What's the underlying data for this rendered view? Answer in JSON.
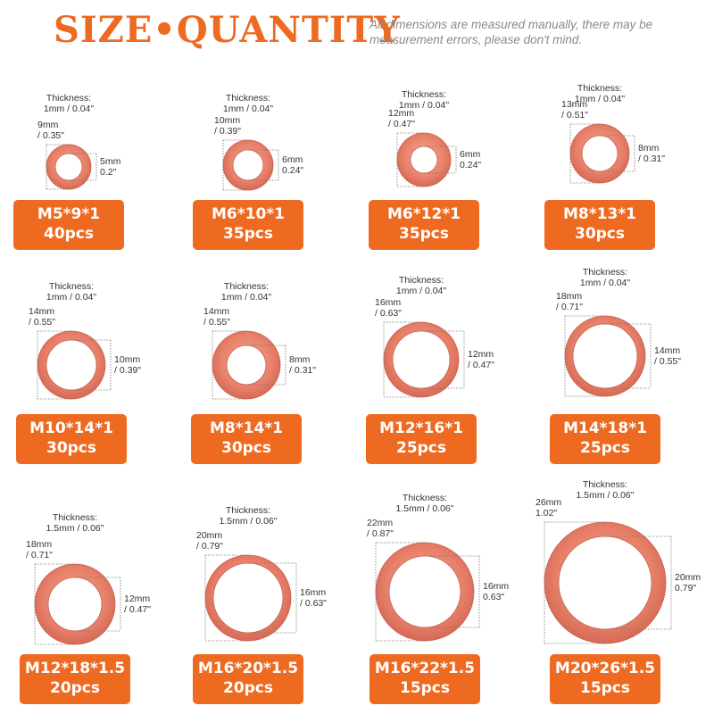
{
  "header": {
    "title": "SIZE•QUANTITY",
    "note": "All dimensions are measured manually, there may be measurement errors, please don't mind."
  },
  "colors": {
    "accent": "#ee6a21",
    "copper": "#e8806a"
  },
  "items": [
    {
      "thickness_label": "Thickness:",
      "thickness": "1mm / 0.04\"",
      "outer_mm": "9mm",
      "outer_in": "/ 0.35\"",
      "inner_mm": "5mm",
      "inner_in": "0.2\"",
      "code": "M5*9*1",
      "qty": "40pcs"
    },
    {
      "thickness_label": "Thickness:",
      "thickness": "1mm / 0.04\"",
      "outer_mm": "10mm",
      "outer_in": "/ 0.39\"",
      "inner_mm": "6mm",
      "inner_in": "0.24\"",
      "code": "M6*10*1",
      "qty": "35pcs"
    },
    {
      "thickness_label": "Thickness:",
      "thickness": "1mm / 0.04\"",
      "outer_mm": "12mm",
      "outer_in": "/ 0.47\"",
      "inner_mm": "6mm",
      "inner_in": "0.24\"",
      "code": "M6*12*1",
      "qty": "35pcs"
    },
    {
      "thickness_label": "Thickness:",
      "thickness": "1mm / 0.04\"",
      "outer_mm": "13mm",
      "outer_in": "/ 0.51\"",
      "inner_mm": "8mm",
      "inner_in": "/ 0.31\"",
      "code": "M8*13*1",
      "qty": "30pcs"
    },
    {
      "thickness_label": "Thickness:",
      "thickness": "1mm / 0.04\"",
      "outer_mm": "14mm",
      "outer_in": "/ 0.55\"",
      "inner_mm": "10mm",
      "inner_in": "/ 0.39\"",
      "code": "M10*14*1",
      "qty": "30pcs"
    },
    {
      "thickness_label": "Thickness:",
      "thickness": "1mm / 0.04\"",
      "outer_mm": "14mm",
      "outer_in": "/ 0.55\"",
      "inner_mm": "8mm",
      "inner_in": "/ 0.31\"",
      "code": "M8*14*1",
      "qty": "30pcs"
    },
    {
      "thickness_label": "Thickness:",
      "thickness": "1mm / 0.04\"",
      "outer_mm": "16mm",
      "outer_in": "/ 0.63\"",
      "inner_mm": "12mm",
      "inner_in": "/ 0.47\"",
      "code": "M12*16*1",
      "qty": "25pcs"
    },
    {
      "thickness_label": "Thickness:",
      "thickness": "1mm / 0.04\"",
      "outer_mm": "18mm",
      "outer_in": "/ 0.71\"",
      "inner_mm": "14mm",
      "inner_in": "/ 0.55\"",
      "code": "M14*18*1",
      "qty": "25pcs"
    },
    {
      "thickness_label": "Thickness:",
      "thickness": "1.5mm / 0.06\"",
      "outer_mm": "18mm",
      "outer_in": "/ 0.71\"",
      "inner_mm": "12mm",
      "inner_in": "/ 0.47\"",
      "code": "M12*18*1.5",
      "qty": "20pcs"
    },
    {
      "thickness_label": "Thickness:",
      "thickness": "1.5mm / 0.06\"",
      "outer_mm": "20mm",
      "outer_in": "/ 0.79\"",
      "inner_mm": "16mm",
      "inner_in": "/ 0.63\"",
      "code": "M16*20*1.5",
      "qty": "20pcs"
    },
    {
      "thickness_label": "Thickness:",
      "thickness": "1.5mm / 0.06\"",
      "outer_mm": "22mm",
      "outer_in": "/ 0.87\"",
      "inner_mm": "16mm",
      "inner_in": "0.63\"",
      "code": "M16*22*1.5",
      "qty": "15pcs"
    },
    {
      "thickness_label": "Thickness:",
      "thickness": "1.5mm / 0.06\"",
      "outer_mm": "26mm",
      "outer_in": "1.02\"",
      "inner_mm": "20mm",
      "inner_in": "0.79\"",
      "code": "M20*26*1.5",
      "qty": "15pcs"
    }
  ]
}
